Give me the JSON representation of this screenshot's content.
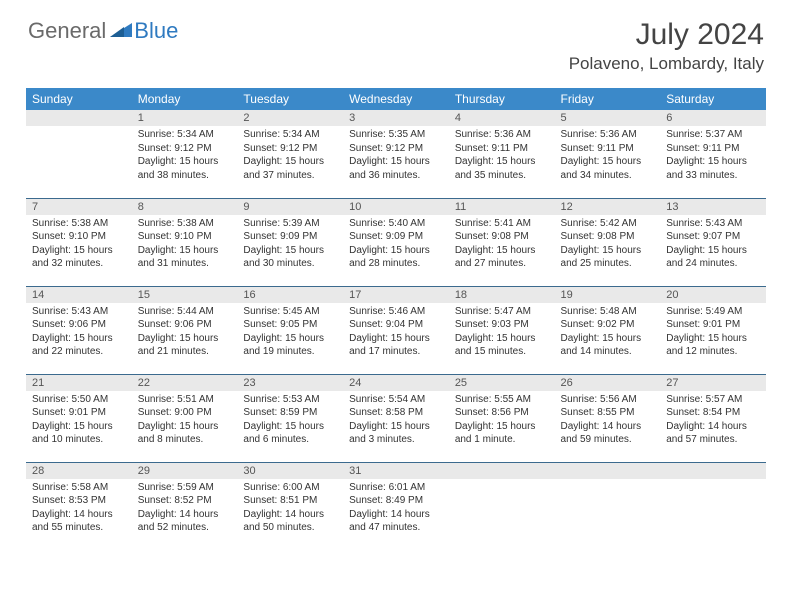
{
  "brand": {
    "word1": "General",
    "word2": "Blue"
  },
  "title": {
    "month": "July 2024",
    "location": "Polaveno, Lombardy, Italy"
  },
  "colors": {
    "header_bg": "#3b89c9",
    "header_text": "#ffffff",
    "daynum_bg": "#e9e9e9",
    "row_border": "#3b6a8e",
    "logo_gray": "#6a6a6a",
    "logo_blue": "#2f7ac0"
  },
  "weekdays": [
    "Sunday",
    "Monday",
    "Tuesday",
    "Wednesday",
    "Thursday",
    "Friday",
    "Saturday"
  ],
  "weeks": [
    [
      {
        "n": "",
        "sunrise": "",
        "sunset": "",
        "daylight": ""
      },
      {
        "n": "1",
        "sunrise": "Sunrise: 5:34 AM",
        "sunset": "Sunset: 9:12 PM",
        "daylight": "Daylight: 15 hours and 38 minutes."
      },
      {
        "n": "2",
        "sunrise": "Sunrise: 5:34 AM",
        "sunset": "Sunset: 9:12 PM",
        "daylight": "Daylight: 15 hours and 37 minutes."
      },
      {
        "n": "3",
        "sunrise": "Sunrise: 5:35 AM",
        "sunset": "Sunset: 9:12 PM",
        "daylight": "Daylight: 15 hours and 36 minutes."
      },
      {
        "n": "4",
        "sunrise": "Sunrise: 5:36 AM",
        "sunset": "Sunset: 9:11 PM",
        "daylight": "Daylight: 15 hours and 35 minutes."
      },
      {
        "n": "5",
        "sunrise": "Sunrise: 5:36 AM",
        "sunset": "Sunset: 9:11 PM",
        "daylight": "Daylight: 15 hours and 34 minutes."
      },
      {
        "n": "6",
        "sunrise": "Sunrise: 5:37 AM",
        "sunset": "Sunset: 9:11 PM",
        "daylight": "Daylight: 15 hours and 33 minutes."
      }
    ],
    [
      {
        "n": "7",
        "sunrise": "Sunrise: 5:38 AM",
        "sunset": "Sunset: 9:10 PM",
        "daylight": "Daylight: 15 hours and 32 minutes."
      },
      {
        "n": "8",
        "sunrise": "Sunrise: 5:38 AM",
        "sunset": "Sunset: 9:10 PM",
        "daylight": "Daylight: 15 hours and 31 minutes."
      },
      {
        "n": "9",
        "sunrise": "Sunrise: 5:39 AM",
        "sunset": "Sunset: 9:09 PM",
        "daylight": "Daylight: 15 hours and 30 minutes."
      },
      {
        "n": "10",
        "sunrise": "Sunrise: 5:40 AM",
        "sunset": "Sunset: 9:09 PM",
        "daylight": "Daylight: 15 hours and 28 minutes."
      },
      {
        "n": "11",
        "sunrise": "Sunrise: 5:41 AM",
        "sunset": "Sunset: 9:08 PM",
        "daylight": "Daylight: 15 hours and 27 minutes."
      },
      {
        "n": "12",
        "sunrise": "Sunrise: 5:42 AM",
        "sunset": "Sunset: 9:08 PM",
        "daylight": "Daylight: 15 hours and 25 minutes."
      },
      {
        "n": "13",
        "sunrise": "Sunrise: 5:43 AM",
        "sunset": "Sunset: 9:07 PM",
        "daylight": "Daylight: 15 hours and 24 minutes."
      }
    ],
    [
      {
        "n": "14",
        "sunrise": "Sunrise: 5:43 AM",
        "sunset": "Sunset: 9:06 PM",
        "daylight": "Daylight: 15 hours and 22 minutes."
      },
      {
        "n": "15",
        "sunrise": "Sunrise: 5:44 AM",
        "sunset": "Sunset: 9:06 PM",
        "daylight": "Daylight: 15 hours and 21 minutes."
      },
      {
        "n": "16",
        "sunrise": "Sunrise: 5:45 AM",
        "sunset": "Sunset: 9:05 PM",
        "daylight": "Daylight: 15 hours and 19 minutes."
      },
      {
        "n": "17",
        "sunrise": "Sunrise: 5:46 AM",
        "sunset": "Sunset: 9:04 PM",
        "daylight": "Daylight: 15 hours and 17 minutes."
      },
      {
        "n": "18",
        "sunrise": "Sunrise: 5:47 AM",
        "sunset": "Sunset: 9:03 PM",
        "daylight": "Daylight: 15 hours and 15 minutes."
      },
      {
        "n": "19",
        "sunrise": "Sunrise: 5:48 AM",
        "sunset": "Sunset: 9:02 PM",
        "daylight": "Daylight: 15 hours and 14 minutes."
      },
      {
        "n": "20",
        "sunrise": "Sunrise: 5:49 AM",
        "sunset": "Sunset: 9:01 PM",
        "daylight": "Daylight: 15 hours and 12 minutes."
      }
    ],
    [
      {
        "n": "21",
        "sunrise": "Sunrise: 5:50 AM",
        "sunset": "Sunset: 9:01 PM",
        "daylight": "Daylight: 15 hours and 10 minutes."
      },
      {
        "n": "22",
        "sunrise": "Sunrise: 5:51 AM",
        "sunset": "Sunset: 9:00 PM",
        "daylight": "Daylight: 15 hours and 8 minutes."
      },
      {
        "n": "23",
        "sunrise": "Sunrise: 5:53 AM",
        "sunset": "Sunset: 8:59 PM",
        "daylight": "Daylight: 15 hours and 6 minutes."
      },
      {
        "n": "24",
        "sunrise": "Sunrise: 5:54 AM",
        "sunset": "Sunset: 8:58 PM",
        "daylight": "Daylight: 15 hours and 3 minutes."
      },
      {
        "n": "25",
        "sunrise": "Sunrise: 5:55 AM",
        "sunset": "Sunset: 8:56 PM",
        "daylight": "Daylight: 15 hours and 1 minute."
      },
      {
        "n": "26",
        "sunrise": "Sunrise: 5:56 AM",
        "sunset": "Sunset: 8:55 PM",
        "daylight": "Daylight: 14 hours and 59 minutes."
      },
      {
        "n": "27",
        "sunrise": "Sunrise: 5:57 AM",
        "sunset": "Sunset: 8:54 PM",
        "daylight": "Daylight: 14 hours and 57 minutes."
      }
    ],
    [
      {
        "n": "28",
        "sunrise": "Sunrise: 5:58 AM",
        "sunset": "Sunset: 8:53 PM",
        "daylight": "Daylight: 14 hours and 55 minutes."
      },
      {
        "n": "29",
        "sunrise": "Sunrise: 5:59 AM",
        "sunset": "Sunset: 8:52 PM",
        "daylight": "Daylight: 14 hours and 52 minutes."
      },
      {
        "n": "30",
        "sunrise": "Sunrise: 6:00 AM",
        "sunset": "Sunset: 8:51 PM",
        "daylight": "Daylight: 14 hours and 50 minutes."
      },
      {
        "n": "31",
        "sunrise": "Sunrise: 6:01 AM",
        "sunset": "Sunset: 8:49 PM",
        "daylight": "Daylight: 14 hours and 47 minutes."
      },
      {
        "n": "",
        "sunrise": "",
        "sunset": "",
        "daylight": ""
      },
      {
        "n": "",
        "sunrise": "",
        "sunset": "",
        "daylight": ""
      },
      {
        "n": "",
        "sunrise": "",
        "sunset": "",
        "daylight": ""
      }
    ]
  ]
}
